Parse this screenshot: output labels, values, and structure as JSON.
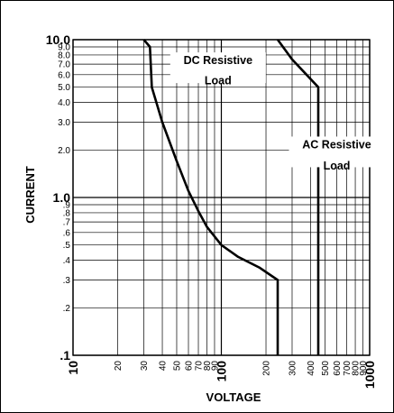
{
  "chart_data": {
    "type": "line",
    "xscale": "log",
    "yscale": "log",
    "xlim": [
      10,
      1000
    ],
    "ylim": [
      0.1,
      10
    ],
    "grid": true,
    "xlabel": "VOLTAGE",
    "ylabel": "CURRENT",
    "x_ticks": [
      {
        "value": 10,
        "label": "10",
        "major": true
      },
      {
        "value": 20,
        "label": "20",
        "major": false
      },
      {
        "value": 30,
        "label": "30",
        "major": false
      },
      {
        "value": 40,
        "label": "40",
        "major": false
      },
      {
        "value": 50,
        "label": "50",
        "major": false
      },
      {
        "value": 60,
        "label": "60",
        "major": false
      },
      {
        "value": 70,
        "label": "70",
        "major": false
      },
      {
        "value": 80,
        "label": "80",
        "major": false
      },
      {
        "value": 90,
        "label": "90",
        "major": false
      },
      {
        "value": 100,
        "label": "100",
        "major": true
      },
      {
        "value": 200,
        "label": "200",
        "major": false
      },
      {
        "value": 300,
        "label": "300",
        "major": false
      },
      {
        "value": 400,
        "label": "400",
        "major": false
      },
      {
        "value": 500,
        "label": "500",
        "major": false
      },
      {
        "value": 600,
        "label": "600",
        "major": false
      },
      {
        "value": 700,
        "label": "700",
        "major": false
      },
      {
        "value": 800,
        "label": "800",
        "major": false
      },
      {
        "value": 900,
        "label": "900",
        "major": false
      },
      {
        "value": 1000,
        "label": "1000",
        "major": true
      }
    ],
    "y_ticks": [
      {
        "value": 0.1,
        "label": ".1",
        "major": true
      },
      {
        "value": 0.2,
        "label": ".2",
        "major": false
      },
      {
        "value": 0.3,
        "label": ".3",
        "major": false
      },
      {
        "value": 0.4,
        "label": ".4",
        "major": false
      },
      {
        "value": 0.5,
        "label": ".5",
        "major": false
      },
      {
        "value": 0.6,
        "label": ".6",
        "major": false
      },
      {
        "value": 0.7,
        "label": ".7",
        "major": false
      },
      {
        "value": 0.8,
        "label": ".8",
        "major": false
      },
      {
        "value": 0.9,
        "label": ".9",
        "major": false
      },
      {
        "value": 1.0,
        "label": "1.0",
        "major": true
      },
      {
        "value": 2.0,
        "label": "2.0",
        "major": false
      },
      {
        "value": 3.0,
        "label": "3.0",
        "major": false
      },
      {
        "value": 4.0,
        "label": "4.0",
        "major": false
      },
      {
        "value": 5.0,
        "label": "5.0",
        "major": false
      },
      {
        "value": 6.0,
        "label": "6.0",
        "major": false
      },
      {
        "value": 7.0,
        "label": "7.0",
        "major": false
      },
      {
        "value": 8.0,
        "label": "8.0",
        "major": false
      },
      {
        "value": 9.0,
        "label": "9.0",
        "major": false
      },
      {
        "value": 10.0,
        "label": "10.0",
        "major": true
      }
    ],
    "series": [
      {
        "name": "DC Resistive Load",
        "points": [
          [
            30,
            10
          ],
          [
            33,
            9
          ],
          [
            34,
            5
          ],
          [
            40,
            3
          ],
          [
            50,
            1.7
          ],
          [
            60,
            1.1
          ],
          [
            70,
            0.82
          ],
          [
            80,
            0.65
          ],
          [
            100,
            0.5
          ],
          [
            130,
            0.42
          ],
          [
            180,
            0.36
          ],
          [
            240,
            0.3
          ],
          [
            240,
            0.1
          ]
        ]
      },
      {
        "name": "AC Resistive Load",
        "points": [
          [
            240,
            10
          ],
          [
            300,
            7.5
          ],
          [
            450,
            5
          ],
          [
            450,
            0.1
          ]
        ]
      }
    ],
    "annotations": [
      {
        "lines": [
          "DC Resistive",
          "Load"
        ],
        "series": "DC Resistive Load"
      },
      {
        "lines": [
          "AC Resistive",
          "Load"
        ],
        "series": "AC Resistive Load"
      }
    ],
    "colors": {
      "line": "#000000",
      "grid": "#000000",
      "background": "#ffffff"
    }
  }
}
